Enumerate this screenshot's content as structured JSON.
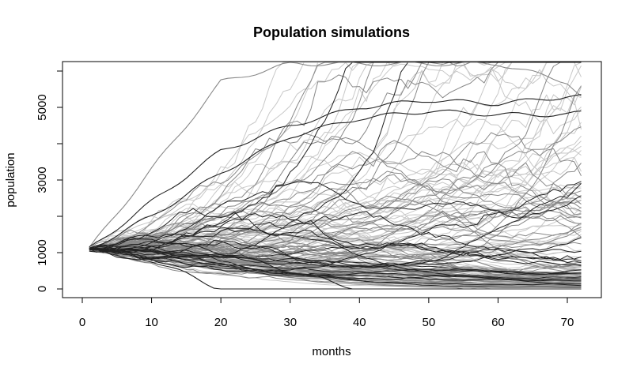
{
  "chart_data": {
    "type": "line",
    "title": "Population simulations",
    "xlabel": "months",
    "ylabel": "population",
    "xlim": [
      0,
      72
    ],
    "ylim": [
      0,
      6000
    ],
    "x_ticks": [
      0,
      10,
      20,
      30,
      40,
      50,
      60,
      70
    ],
    "y_ticks": [
      0,
      1000,
      3000,
      5000
    ],
    "y_minor_ticks": [
      2000,
      4000,
      6000
    ],
    "grid": false,
    "legend": "none",
    "series_note_count": 150,
    "start_value": 1100,
    "n_months": 72,
    "colors": {
      "dark": "#222222",
      "mid": "#888888",
      "light": "#c8c8c8"
    },
    "highlighted_trajectories": [
      {
        "x": [
          1,
          10,
          20,
          30,
          40,
          50,
          60,
          70,
          72
        ],
        "y": [
          1100,
          3300,
          5700,
          6200,
          6200,
          6200,
          6200,
          5700,
          5300
        ]
      },
      {
        "x": [
          1,
          10,
          20,
          30,
          40,
          50,
          60,
          70,
          72
        ],
        "y": [
          1100,
          2400,
          3800,
          4500,
          5000,
          5200,
          5100,
          5300,
          5300
        ]
      },
      {
        "x": [
          1,
          10,
          20,
          30,
          40,
          50,
          60,
          70,
          72
        ],
        "y": [
          1100,
          2000,
          3200,
          4200,
          4700,
          4900,
          4800,
          4800,
          4850
        ]
      },
      {
        "x": [
          1,
          10,
          20,
          30,
          40,
          50,
          60,
          70,
          72
        ],
        "y": [
          1100,
          1400,
          1000,
          500,
          0,
          0,
          0,
          0,
          0
        ]
      },
      {
        "x": [
          1,
          10,
          20,
          30,
          40,
          50,
          60,
          70,
          72
        ],
        "y": [
          1100,
          800,
          0,
          0,
          0,
          0,
          0,
          0,
          0
        ]
      }
    ]
  }
}
